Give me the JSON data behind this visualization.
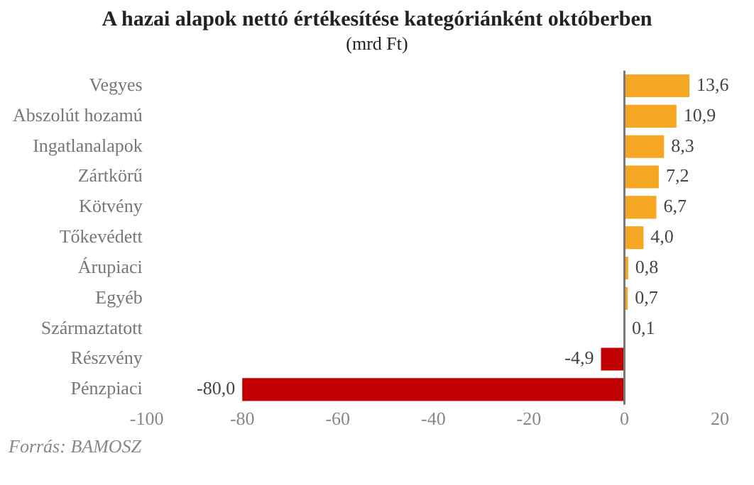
{
  "chart_data": {
    "type": "bar",
    "orientation": "horizontal",
    "title": "A hazai alapok nettó értékesítése kategóriánként októberben",
    "subtitle": "(mrd Ft)",
    "categories": [
      "Vegyes",
      "Abszolút hozamú",
      "Ingatlanalapok",
      "Zártkörű",
      "Kötvény",
      "Tőkevédett",
      "Árupiaci",
      "Egyéb",
      "Származtatott",
      "Részvény",
      "Pénzpiaci"
    ],
    "values": [
      13.6,
      10.9,
      8.3,
      7.2,
      6.7,
      4.0,
      0.8,
      0.7,
      0.1,
      -4.9,
      -80.0
    ],
    "value_labels": [
      "13,6",
      "10,9",
      "8,3",
      "7,2",
      "6,7",
      "4,0",
      "0,8",
      "0,7",
      "0,1",
      "-4,9",
      "-80,0"
    ],
    "colors": [
      "#f5a623",
      "#f5a623",
      "#f5a623",
      "#f5a623",
      "#f5a623",
      "#f5a623",
      "#f5a623",
      "#f5a623",
      "#f5a623",
      "#c00000",
      "#c00000"
    ],
    "xlim": [
      -100,
      20
    ],
    "xticks": [
      -100,
      -80,
      -60,
      -40,
      -20,
      0,
      20
    ],
    "grid": false,
    "legend": false,
    "ref_lines": [
      {
        "axis": "x",
        "value": 0,
        "color": "#777777"
      }
    ],
    "annotations": [
      "Forrás: BAMOSZ"
    ]
  }
}
